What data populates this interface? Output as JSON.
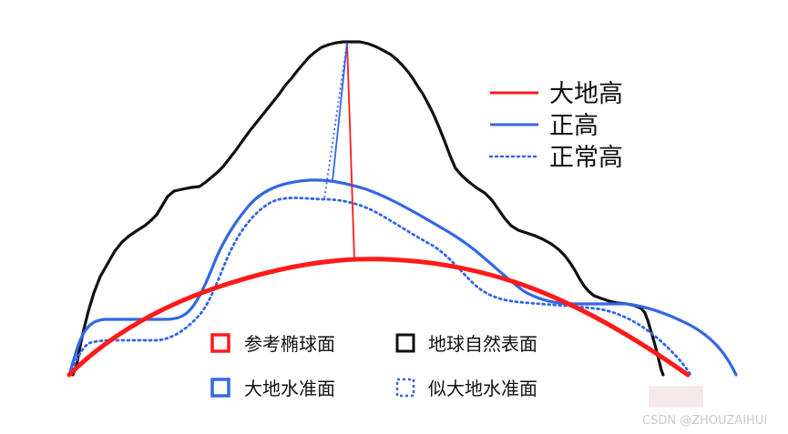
{
  "colors": {
    "geodetic_red": "#ff1a1a",
    "ortho_blue": "#3366e8",
    "terrain_black": "#111111",
    "background": "#ffffff",
    "watermark_gray": "#c9c9c9",
    "watermark_pink": "#f6e9ec"
  },
  "top_legend": [
    {
      "label": "大地高",
      "style": "solid-red"
    },
    {
      "label": "正高",
      "style": "solid-blue"
    },
    {
      "label": "正常高",
      "style": "dotted-blue"
    }
  ],
  "bottom_legend": [
    {
      "label": "参考椭球面",
      "style": "red-box"
    },
    {
      "label": "地球自然表面",
      "style": "black-box"
    },
    {
      "label": "大地水准面",
      "style": "blue-box"
    },
    {
      "label": "似大地水准面",
      "style": "dotted-blue-box"
    }
  ],
  "watermark": "CSDN @ZHOUZAIHUI"
}
